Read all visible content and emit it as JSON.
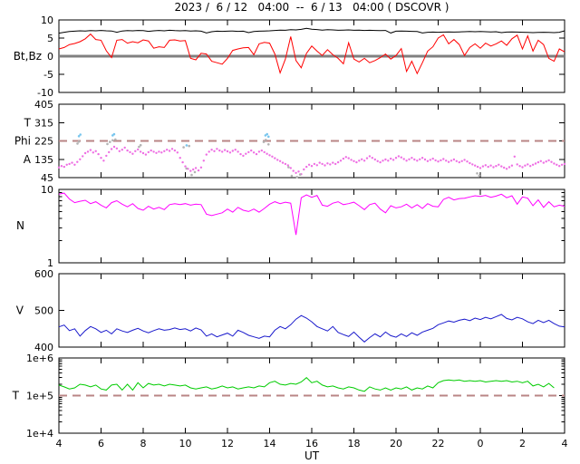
{
  "title": "2023 /  6 / 12   04:00  --  6 / 13   04:00 ( DSCOVR )",
  "x_axis": {
    "label": "UT",
    "range": [
      4,
      28
    ],
    "ticks": [
      4,
      6,
      8,
      10,
      12,
      14,
      16,
      18,
      20,
      22,
      24,
      26,
      28
    ],
    "tick_labels": [
      "4",
      "6",
      "8",
      "10",
      "12",
      "14",
      "16",
      "18",
      "20",
      "22",
      "0",
      "2",
      "4"
    ]
  },
  "colors": {
    "background": "#ffffff",
    "axis": "#000000",
    "bt": "#000000",
    "bz": "#ff0000",
    "zero_line": "#808080",
    "phi_dots": "#ee6fe3",
    "phi_gray": "#b3b3b3",
    "phi_cyan": "#79c6ee",
    "density": "#ff00ff",
    "velocity": "#1a1acc",
    "temperature": "#00cc00",
    "dashed": "#b98585"
  },
  "chart_data": [
    {
      "name": "magnetic-field",
      "type": "line",
      "ylabel": "Bt,Bz",
      "ylabel_at": 0,
      "ylim": [
        -10,
        10
      ],
      "yticks": [
        -10,
        -5,
        0,
        5,
        10
      ],
      "ytick_labels": [
        "-10",
        "-5",
        "0",
        "5",
        "10"
      ],
      "zero_line": 0,
      "series": [
        {
          "name": "Bt",
          "color": "bt",
          "x_start": 4,
          "x_step": 0.25,
          "values": [
            6.35,
            6.6,
            6.8,
            6.9,
            7.0,
            6.95,
            7.05,
            7.0,
            7.1,
            7.0,
            6.95,
            6.6,
            6.95,
            7.05,
            7.0,
            7.1,
            7.05,
            6.85,
            7.0,
            7.1,
            7.0,
            7.15,
            7.05,
            7.0,
            7.05,
            6.95,
            7.0,
            6.9,
            6.4,
            6.75,
            6.9,
            6.85,
            6.9,
            6.95,
            6.85,
            6.9,
            6.5,
            6.8,
            6.9,
            6.95,
            7.0,
            7.1,
            7.2,
            7.15,
            7.3,
            7.25,
            7.4,
            7.7,
            7.45,
            7.35,
            7.2,
            7.3,
            7.25,
            7.15,
            7.2,
            7.25,
            7.15,
            7.2,
            7.1,
            7.15,
            7.1,
            7.05,
            7.1,
            6.4,
            6.9,
            6.95,
            6.9,
            6.85,
            6.8,
            6.4,
            6.6,
            6.65,
            6.6,
            6.65,
            6.7,
            6.65,
            6.7,
            6.75,
            6.8,
            6.75,
            6.8,
            6.75,
            6.7,
            6.75,
            6.5,
            6.65,
            6.7,
            6.65,
            6.6,
            6.55,
            6.5,
            6.55,
            6.6,
            6.55,
            6.5,
            6.6,
            7.0
          ]
        },
        {
          "name": "Bz",
          "color": "bz",
          "x_start": 4,
          "x_step": 0.25,
          "values": [
            2.0,
            2.4,
            3.2,
            3.5,
            4.0,
            4.8,
            6.1,
            4.6,
            4.4,
            1.5,
            -0.4,
            4.4,
            4.6,
            3.6,
            4.0,
            3.7,
            4.5,
            4.2,
            2.2,
            2.6,
            2.4,
            4.4,
            4.5,
            4.2,
            4.3,
            -0.6,
            -1.0,
            0.8,
            0.6,
            -1.4,
            -1.8,
            -2.2,
            -0.6,
            1.6,
            2.0,
            2.3,
            2.4,
            0.4,
            3.4,
            3.8,
            3.6,
            0.6,
            -4.6,
            -0.8,
            5.4,
            -1.2,
            -3.2,
            0.8,
            2.8,
            1.4,
            0.2,
            1.8,
            0.4,
            -0.6,
            -2.1,
            3.7,
            -0.8,
            -1.6,
            -0.6,
            -1.8,
            -1.2,
            -0.4,
            0.6,
            -0.8,
            0.2,
            2.1,
            -4.2,
            -1.4,
            -4.8,
            -1.8,
            1.4,
            2.6,
            5.0,
            5.9,
            3.4,
            4.6,
            3.2,
            0.2,
            2.4,
            3.4,
            2.2,
            3.6,
            2.8,
            3.4,
            4.2,
            3.0,
            4.8,
            5.8,
            2.0,
            5.6,
            1.4,
            4.4,
            3.2,
            -0.6,
            -1.4,
            2.0,
            1.2
          ]
        }
      ]
    },
    {
      "name": "imf-angle",
      "type": "scatter",
      "left_labels": [
        {
          "text": "T",
          "at": 315
        },
        {
          "text": "Phi",
          "at": 225
        },
        {
          "text": "A",
          "at": 135
        }
      ],
      "ylim": [
        45,
        405
      ],
      "yticks": [
        45,
        135,
        225,
        315,
        405
      ],
      "ytick_labels": [
        "45",
        "135",
        "225",
        "315",
        "405"
      ],
      "dashed_line": 225,
      "series": [
        {
          "name": "phi-angle-dots",
          "color": "phi_dots",
          "x_start": 4,
          "x_step": 0.125,
          "values": [
            95,
            102,
            98,
            108,
            112,
            118,
            108,
            122,
            135,
            150,
            165,
            172,
            180,
            168,
            175,
            160,
            142,
            128,
            152,
            170,
            185,
            196,
            188,
            175,
            182,
            192,
            178,
            170,
            162,
            175,
            183,
            172,
            165,
            158,
            170,
            178,
            172,
            166,
            172,
            168,
            175,
            182,
            176,
            186,
            178,
            168,
            142,
            120,
            100,
            88,
            78,
            85,
            92,
            80,
            95,
            128,
            158,
            172,
            182,
            175,
            186,
            178,
            172,
            180,
            174,
            168,
            176,
            182,
            172,
            160,
            152,
            162,
            170,
            178,
            168,
            160,
            172,
            178,
            170,
            162,
            155,
            148,
            140,
            132,
            126,
            118,
            112,
            105,
            92,
            78,
            68,
            75,
            62,
            85,
            98,
            108,
            102,
            112,
            106,
            118,
            112,
            105,
            115,
            110,
            118,
            112,
            120,
            128,
            138,
            146,
            140,
            132,
            126,
            120,
            128,
            135,
            128,
            140,
            150,
            142,
            134,
            126,
            120,
            128,
            134,
            128,
            138,
            132,
            142,
            150,
            144,
            136,
            128,
            135,
            142,
            134,
            128,
            135,
            142,
            134,
            126,
            132,
            138,
            130,
            124,
            130,
            136,
            128,
            122,
            128,
            134,
            126,
            120,
            126,
            132,
            124,
            116,
            110,
            104,
            98,
            92,
            100,
            106,
            98,
            104,
            96,
            102,
            108,
            100,
            94,
            88,
            96,
            104,
            148,
            110,
            102,
            96,
            104,
            110,
            102,
            108,
            114,
            120,
            126,
            118,
            124,
            130,
            122,
            114,
            108,
            102,
            108,
            112
          ]
        },
        {
          "name": "phi-gray-dots",
          "color": "phi_gray",
          "points": [
            [
              4.88,
              212
            ],
            [
              4.95,
              222
            ],
            [
              6.3,
              210
            ],
            [
              6.42,
              220
            ],
            [
              6.55,
              228
            ],
            [
              6.68,
              232
            ],
            [
              7.8,
              196
            ],
            [
              7.88,
              204
            ],
            [
              9.92,
              194
            ],
            [
              10.05,
              90
            ],
            [
              10.18,
              200
            ],
            [
              10.3,
              58
            ],
            [
              10.45,
              72
            ],
            [
              13.72,
              220
            ],
            [
              13.82,
              230
            ],
            [
              13.95,
              208
            ],
            [
              14.9,
              96
            ],
            [
              15.05,
              54
            ],
            [
              15.3,
              48
            ],
            [
              15.45,
              60
            ],
            [
              23.85,
              66
            ],
            [
              23.95,
              55
            ]
          ]
        },
        {
          "name": "phi-cyan-dots",
          "color": "phi_cyan",
          "points": [
            [
              4.95,
              248
            ],
            [
              5.02,
              256
            ],
            [
              6.55,
              252
            ],
            [
              6.62,
              258
            ],
            [
              10.06,
              203
            ],
            [
              13.8,
              252
            ],
            [
              13.88,
              258
            ],
            [
              13.95,
              246
            ]
          ]
        }
      ]
    },
    {
      "name": "density",
      "type": "line",
      "ylabel": "N",
      "ylabel_at": 3.2,
      "yscale": "log",
      "ylim": [
        1,
        10
      ],
      "yticks": [
        1,
        10
      ],
      "ytick_labels": [
        "1",
        "10"
      ],
      "series": [
        {
          "name": "N",
          "color": "density",
          "x_start": 4,
          "x_step": 0.25,
          "values": [
            8.6,
            8.9,
            7.4,
            6.6,
            6.9,
            7.1,
            6.4,
            6.8,
            6.1,
            5.6,
            6.6,
            7.0,
            6.3,
            5.8,
            6.4,
            5.5,
            5.2,
            5.9,
            5.4,
            5.7,
            5.3,
            6.2,
            6.4,
            6.2,
            6.4,
            6.1,
            6.3,
            6.2,
            4.6,
            4.4,
            4.6,
            4.8,
            5.4,
            4.9,
            5.7,
            5.2,
            5.0,
            5.4,
            4.9,
            5.5,
            6.3,
            6.8,
            6.4,
            6.7,
            6.5,
            2.4,
            7.7,
            8.4,
            7.8,
            8.3,
            6.1,
            5.9,
            6.5,
            6.8,
            6.2,
            6.4,
            6.7,
            6.0,
            5.3,
            6.2,
            6.5,
            5.4,
            4.8,
            6.0,
            5.6,
            5.8,
            6.3,
            5.6,
            6.2,
            5.5,
            6.4,
            5.9,
            5.8,
            7.3,
            7.8,
            7.2,
            7.5,
            7.6,
            7.9,
            8.2,
            8.0,
            8.3,
            7.8,
            8.1,
            8.6,
            7.7,
            8.2,
            6.3,
            7.9,
            7.6,
            6.0,
            7.2,
            5.7,
            6.8,
            5.8,
            6.1,
            5.9
          ]
        }
      ]
    },
    {
      "name": "velocity",
      "type": "line",
      "ylabel": "V",
      "ylabel_at": 500,
      "ylim": [
        400,
        600
      ],
      "yticks": [
        400,
        500,
        600
      ],
      "ytick_labels": [
        "400",
        "500",
        "600"
      ],
      "series": [
        {
          "name": "V",
          "color": "velocity",
          "x_start": 4,
          "x_step": 0.25,
          "values": [
            455,
            460,
            445,
            450,
            430,
            445,
            456,
            450,
            440,
            446,
            436,
            450,
            444,
            440,
            446,
            451,
            444,
            439,
            445,
            450,
            446,
            448,
            452,
            448,
            450,
            444,
            452,
            447,
            430,
            436,
            428,
            433,
            438,
            430,
            446,
            440,
            432,
            428,
            424,
            430,
            428,
            446,
            456,
            450,
            461,
            476,
            486,
            479,
            469,
            456,
            450,
            444,
            456,
            440,
            434,
            429,
            441,
            427,
            414,
            426,
            436,
            428,
            441,
            431,
            427,
            436,
            429,
            439,
            432,
            441,
            446,
            451,
            461,
            466,
            471,
            468,
            473,
            476,
            472,
            479,
            475,
            481,
            477,
            483,
            489,
            478,
            474,
            481,
            477,
            469,
            464,
            473,
            467,
            473,
            464,
            457,
            455
          ]
        }
      ]
    },
    {
      "name": "temperature",
      "type": "line",
      "ylabel": "T",
      "ylabel_at": 100000,
      "yscale": "log",
      "ylim": [
        10000,
        1000000
      ],
      "yticks": [
        10000,
        100000,
        1000000
      ],
      "ytick_labels": [
        "1e+4",
        "1e+5",
        "1e+6"
      ],
      "dashed_line": 100000,
      "series": [
        {
          "name": "T",
          "color": "temperature",
          "x_start": 4,
          "x_step": 0.25,
          "unit_scale": 100000,
          "values": [
            1.9,
            1.7,
            1.5,
            1.6,
            2.0,
            1.9,
            1.7,
            1.9,
            1.5,
            1.4,
            1.9,
            2.0,
            1.4,
            2.0,
            1.4,
            2.2,
            1.6,
            2.1,
            1.9,
            2.0,
            1.8,
            2.0,
            1.9,
            1.8,
            1.9,
            1.6,
            1.5,
            1.6,
            1.7,
            1.5,
            1.6,
            1.8,
            1.6,
            1.7,
            1.5,
            1.6,
            1.7,
            1.6,
            1.8,
            1.7,
            2.2,
            2.4,
            2.0,
            1.9,
            2.1,
            2.0,
            2.3,
            3.0,
            2.2,
            2.4,
            1.9,
            1.7,
            1.8,
            1.6,
            1.5,
            1.7,
            1.6,
            1.4,
            1.3,
            1.7,
            1.5,
            1.4,
            1.6,
            1.4,
            1.6,
            1.5,
            1.7,
            1.4,
            1.6,
            1.5,
            1.8,
            1.6,
            2.2,
            2.5,
            2.6,
            2.5,
            2.6,
            2.4,
            2.5,
            2.4,
            2.5,
            2.3,
            2.4,
            2.5,
            2.4,
            2.5,
            2.3,
            2.4,
            2.2,
            2.4,
            1.8,
            2.0,
            1.7,
            2.1,
            1.6,
            null,
            null
          ]
        }
      ]
    }
  ]
}
